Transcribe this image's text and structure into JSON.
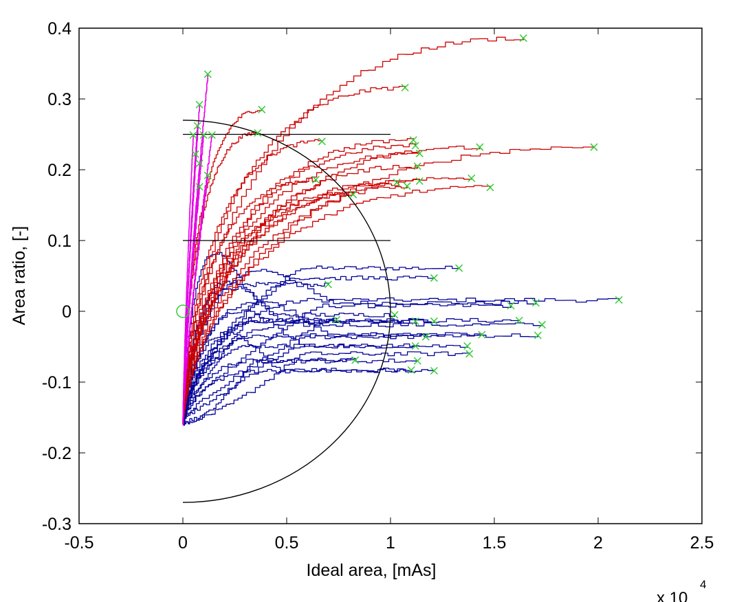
{
  "chart_data": {
    "type": "line",
    "title": "",
    "xlabel": "Ideal area, [mAs]",
    "ylabel": "Area ratio, [-]",
    "x_multiplier_label": "x 10",
    "x_multiplier_exponent": "4",
    "xlim": [
      -0.5,
      2.5
    ],
    "ylim": [
      -0.3,
      0.4
    ],
    "x_ticks": [
      -0.5,
      0,
      0.5,
      1,
      1.5,
      2,
      2.5
    ],
    "x_tick_labels": [
      "-0.5",
      "0",
      "0.5",
      "1",
      "1.5",
      "2",
      "2.5"
    ],
    "y_ticks": [
      0.4,
      0.3,
      0.2,
      0.1,
      0,
      -0.1,
      -0.2,
      -0.3
    ],
    "y_tick_labels": [
      "0.4",
      "0.3",
      "0.2",
      "0.1",
      "0",
      "-0.1",
      "-0.2",
      "-0.3"
    ],
    "grid": false,
    "legend": "none",
    "colors": {
      "red_series": "#cc0000",
      "blue_series": "#000099",
      "magenta_series": "#e600e6",
      "reference": "#000000",
      "end_marker": "#33cc33"
    },
    "reference_lines": [
      {
        "name": "threshold-0.25",
        "type": "hline",
        "y": 0.25,
        "x": [
          0,
          1.0
        ]
      },
      {
        "name": "threshold-0.1",
        "type": "hline",
        "y": 0.1,
        "x": [
          0,
          1.0
        ]
      },
      {
        "name": "boundary-arc",
        "type": "half-ellipse",
        "center": [
          0,
          0
        ],
        "x_radius": 1.0,
        "y_radius": 0.27
      }
    ],
    "origin_marker": {
      "x": 0,
      "y": 0,
      "shape": "circle"
    },
    "series": [
      {
        "name": "red",
        "color": "#cc0000",
        "start": [
          0.0,
          -0.16
        ],
        "endpoints": [
          [
            1.64,
            0.386
          ],
          [
            1.07,
            0.316
          ],
          [
            0.38,
            0.285
          ],
          [
            0.36,
            0.252
          ],
          [
            0.67,
            0.24
          ],
          [
            1.11,
            0.242
          ],
          [
            1.12,
            0.234
          ],
          [
            1.14,
            0.223
          ],
          [
            1.43,
            0.232
          ],
          [
            1.98,
            0.232
          ],
          [
            1.13,
            0.205
          ],
          [
            0.64,
            0.186
          ],
          [
            1.39,
            0.188
          ],
          [
            1.48,
            0.175
          ],
          [
            1.03,
            0.182
          ],
          [
            1.08,
            0.177
          ],
          [
            1.14,
            0.184
          ],
          [
            0.82,
            0.165
          ]
        ]
      },
      {
        "name": "blue",
        "color": "#000099",
        "start": [
          0.0,
          -0.16
        ],
        "endpoints": [
          [
            1.33,
            0.061
          ],
          [
            2.1,
            0.016
          ],
          [
            1.7,
            0.012
          ],
          [
            1.58,
            0.008
          ],
          [
            1.21,
            -0.014
          ],
          [
            1.12,
            -0.014
          ],
          [
            1.62,
            -0.013
          ],
          [
            1.73,
            -0.019
          ],
          [
            1.71,
            -0.034
          ],
          [
            1.44,
            -0.033
          ],
          [
            1.17,
            -0.036
          ],
          [
            0.7,
            0.038
          ],
          [
            0.74,
            -0.012
          ],
          [
            1.12,
            -0.049
          ],
          [
            1.37,
            -0.049
          ],
          [
            1.38,
            -0.06
          ],
          [
            1.21,
            -0.084
          ],
          [
            1.1,
            -0.083
          ],
          [
            0.83,
            -0.069
          ],
          [
            1.13,
            -0.07
          ],
          [
            1.02,
            -0.005
          ],
          [
            1.21,
            0.047
          ]
        ]
      },
      {
        "name": "magenta",
        "color": "#e600e6",
        "start": [
          0.0,
          -0.16
        ],
        "endpoints": [
          [
            0.12,
            0.335
          ],
          [
            0.08,
            0.292
          ],
          [
            0.07,
            0.262
          ],
          [
            0.05,
            0.249
          ],
          [
            0.1,
            0.249
          ],
          [
            0.14,
            0.249
          ],
          [
            0.06,
            0.222
          ],
          [
            0.08,
            0.209
          ],
          [
            0.12,
            0.192
          ],
          [
            0.08,
            0.176
          ]
        ]
      }
    ]
  }
}
